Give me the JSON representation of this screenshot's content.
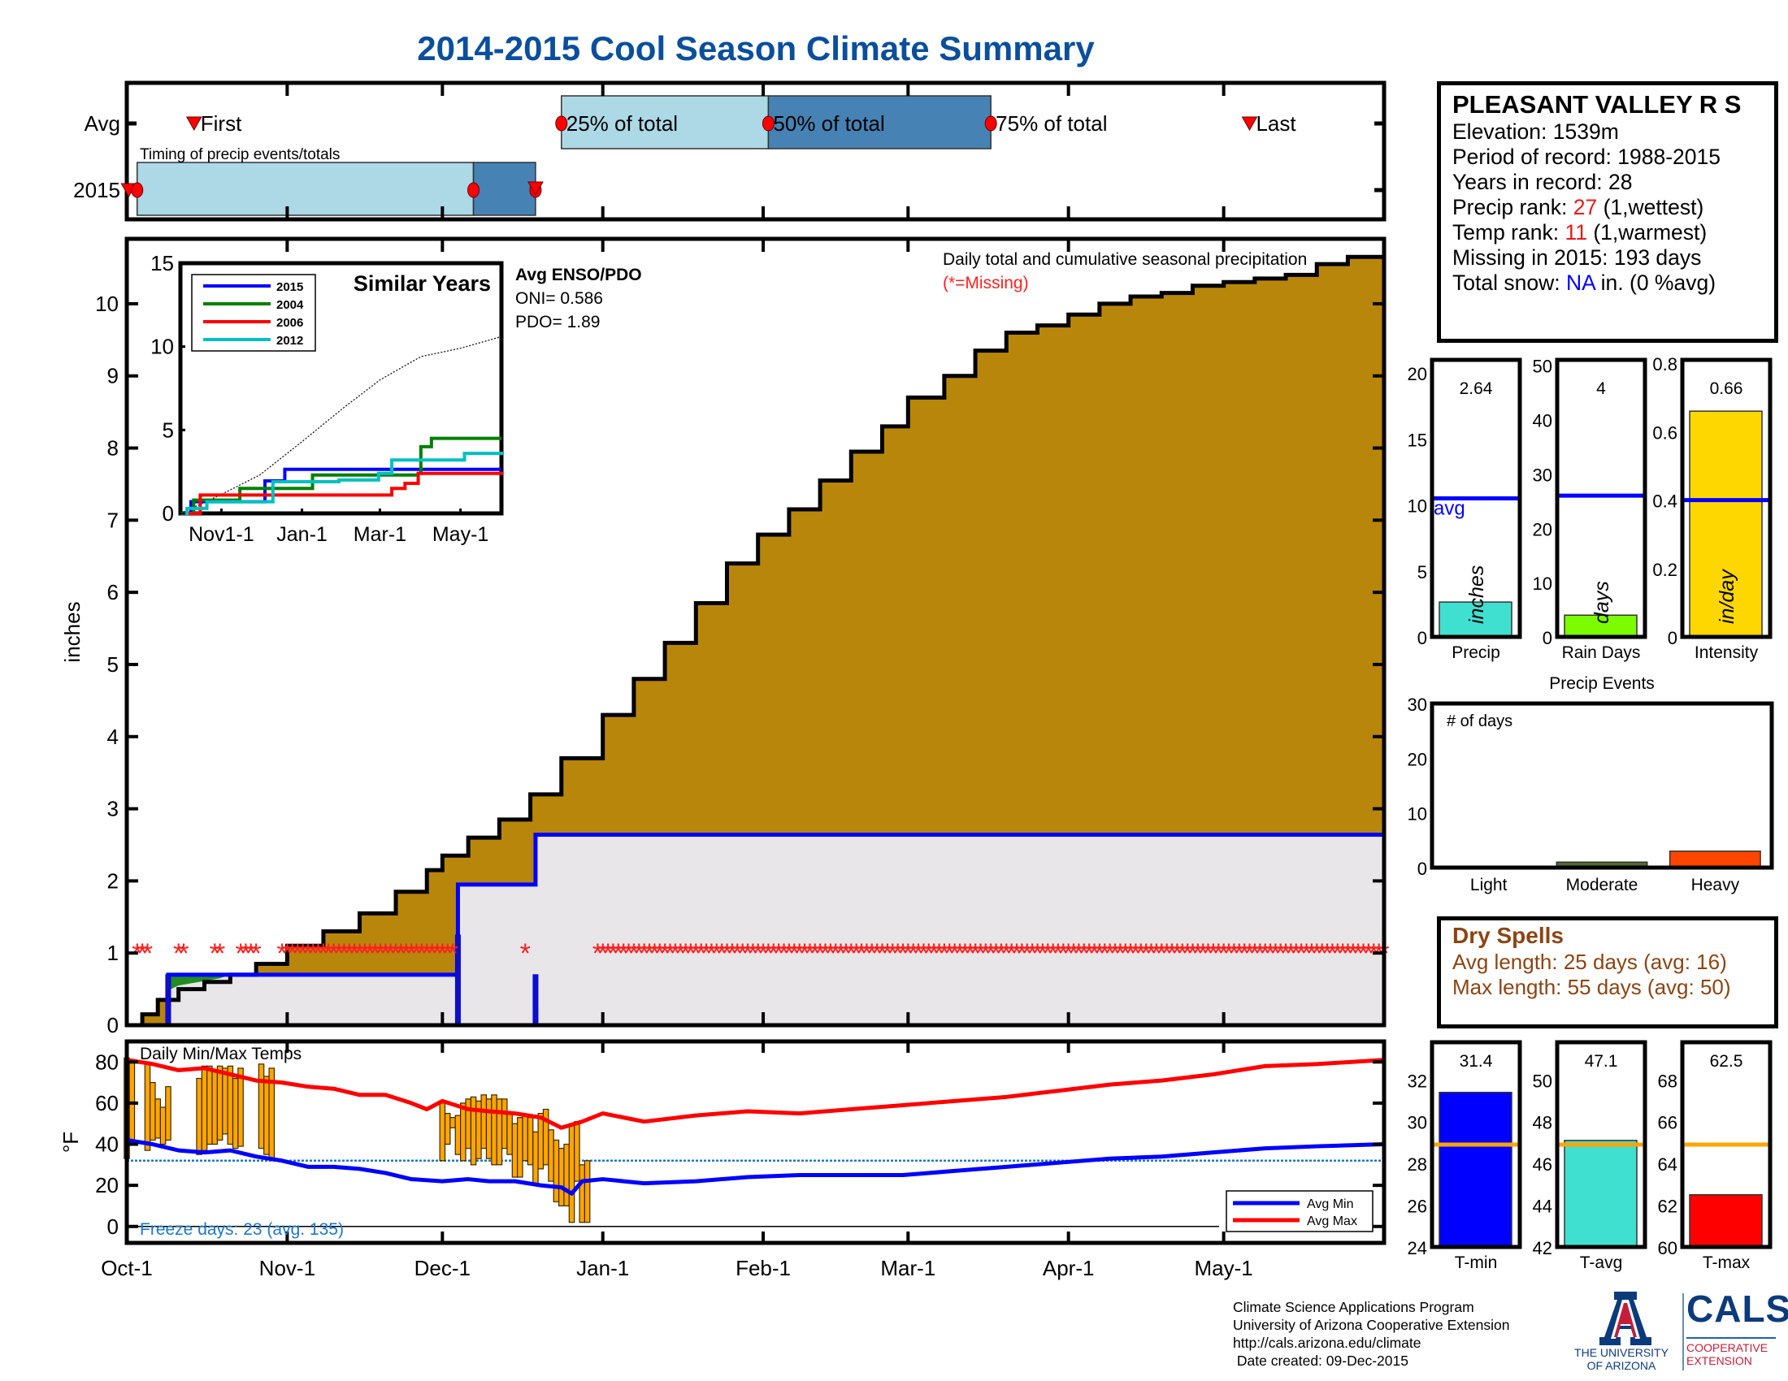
{
  "title": "2014-2015 Cool Season Climate Summary",
  "timing_panel": {
    "caption": "Timing of precip events/totals",
    "row_labels": [
      "Avg",
      "2015"
    ],
    "avg": {
      "first_label": "First",
      "last_label": "Last",
      "p25_label": "25% of total",
      "p50_label": "50% of total",
      "p75_label": "75% of total",
      "first_day": 13,
      "p25_day": 84,
      "p50_day": 124,
      "p75_day": 167,
      "last_day": 217
    },
    "y2015": {
      "first_day": 1,
      "p25_day": 2,
      "p50_day": 67,
      "p75_day": 79
    },
    "colors": {
      "light": "#add8e6",
      "dark": "#4682b4",
      "marker": "#ff0000"
    }
  },
  "station": {
    "name": "PLEASANT VALLEY R S",
    "elevation": "Elevation: 1539m",
    "period": "Period of record: 1988-2015",
    "years": "Years in record: 28",
    "precip_rank_prefix": "Precip rank: ",
    "precip_rank": "27",
    "precip_rank_suffix": " (1,wettest)",
    "temp_rank_prefix": "Temp rank: ",
    "temp_rank": "11",
    "temp_rank_suffix": " (1,warmest)",
    "missing": "Missing in 2015: 193 days",
    "snow_prefix": "Total snow: ",
    "snow_value": "NA",
    "snow_suffix": " in. (0 %avg)"
  },
  "dry_spells": {
    "heading": "Dry Spells",
    "avg_length": "Avg length: 25 days (avg: 16)",
    "max_length": "Max length: 55 days (avg: 50)"
  },
  "credits": {
    "line1": "Climate Science Applications Program",
    "line2": "University of Arizona Cooperative Extension",
    "line3": "http://cals.arizona.edu/climate",
    "line4": " Date created: 09-Dec-2015"
  },
  "logos": {
    "ua_line1": "THE UNIVERSITY",
    "ua_line2": "OF ARIZONA",
    "cals": "CALS",
    "coop_line1": "COOPERATIVE",
    "coop_line2": "EXTENSION"
  },
  "chart_data": [
    {
      "id": "cumulative_precip",
      "type": "area",
      "title": "Daily total and cumulative seasonal precipitation",
      "subtitle": "(*=Missing)",
      "ylabel": "inches",
      "ylim": [
        0,
        10.5
      ],
      "yticks": [
        0,
        1,
        2,
        3,
        4,
        5,
        6,
        7,
        8,
        9,
        10
      ],
      "xlim_days": [
        0,
        243
      ],
      "xtick_labels": [
        "Oct-1",
        "Nov-1",
        "Dec-1",
        "Jan-1",
        "Feb-1",
        "Mar-1",
        "Apr-1",
        "May-1"
      ],
      "xtick_days": [
        0,
        31,
        61,
        92,
        123,
        151,
        182,
        212
      ],
      "avg_cumulative": {
        "name": "Average cumulative",
        "color": "#b8860b",
        "days": [
          0,
          3,
          6,
          10,
          15,
          20,
          25,
          31,
          38,
          45,
          52,
          58,
          61,
          66,
          72,
          78,
          84,
          92,
          98,
          104,
          110,
          116,
          122,
          128,
          134,
          140,
          146,
          151,
          158,
          164,
          170,
          176,
          182,
          188,
          194,
          200,
          206,
          212,
          218,
          224,
          230,
          236,
          243
        ],
        "values": [
          0,
          0.15,
          0.35,
          0.5,
          0.6,
          0.7,
          0.85,
          1.1,
          1.3,
          1.55,
          1.85,
          2.15,
          2.35,
          2.6,
          2.85,
          3.2,
          3.7,
          4.3,
          4.8,
          5.3,
          5.85,
          6.4,
          6.8,
          7.15,
          7.55,
          7.95,
          8.3,
          8.7,
          9.0,
          9.35,
          9.6,
          9.7,
          9.85,
          10.0,
          10.1,
          10.15,
          10.25,
          10.3,
          10.35,
          10.4,
          10.55,
          10.65,
          10.72
        ]
      },
      "series_2015": {
        "name": "2015 cumulative",
        "color": "#0000ff",
        "fill": "#e8e6e8",
        "steps": [
          [
            0,
            0
          ],
          [
            8,
            0.7
          ],
          [
            64,
            1.95
          ],
          [
            79,
            2.64
          ],
          [
            243,
            2.64
          ]
        ]
      },
      "daily_2015": [
        {
          "day": 8,
          "value": 0.7
        },
        {
          "day": 64,
          "value": 1.25
        },
        {
          "day": 79,
          "value": 0.7
        }
      ],
      "missing_marker_value": 1,
      "missing_days_ranges": [
        [
          2,
          4
        ],
        [
          10,
          11
        ],
        [
          17,
          18
        ],
        [
          22,
          25
        ],
        [
          30,
          63
        ],
        [
          77,
          77
        ],
        [
          91,
          243
        ]
      ]
    },
    {
      "id": "similar_years",
      "type": "line",
      "title": "Similar Years",
      "ylim": [
        0,
        15
      ],
      "yticks": [
        0,
        5,
        10,
        15
      ],
      "xtick_labels": [
        "Nov1-1",
        "Jan-1",
        "Mar-1",
        "May-1"
      ],
      "xlim_days": [
        0,
        243
      ],
      "xtick_days": [
        31,
        92,
        151,
        212
      ],
      "legend_position": "top-left",
      "series": [
        {
          "name": "2015",
          "color": "#0000ff",
          "steps": [
            [
              0,
              0
            ],
            [
              8,
              0.7
            ],
            [
              64,
              1.95
            ],
            [
              79,
              2.64
            ],
            [
              243,
              2.64
            ]
          ]
        },
        {
          "name": "2004",
          "color": "#008000",
          "steps": [
            [
              0,
              0
            ],
            [
              10,
              0.8
            ],
            [
              45,
              1.5
            ],
            [
              95,
              1.5
            ],
            [
              100,
              2.3
            ],
            [
              180,
              2.4
            ],
            [
              182,
              4.0
            ],
            [
              190,
              4.5
            ],
            [
              243,
              4.5
            ]
          ]
        },
        {
          "name": "2006",
          "color": "#ff0000",
          "steps": [
            [
              0,
              0
            ],
            [
              15,
              1.1
            ],
            [
              150,
              1.1
            ],
            [
              160,
              1.5
            ],
            [
              170,
              1.8
            ],
            [
              180,
              2.4
            ],
            [
              243,
              2.5
            ]
          ]
        },
        {
          "name": "2012",
          "color": "#00c0c0",
          "steps": [
            [
              0,
              0
            ],
            [
              5,
              0.3
            ],
            [
              20,
              0.7
            ],
            [
              60,
              0.7
            ],
            [
              70,
              1.9
            ],
            [
              120,
              2.0
            ],
            [
              150,
              2.4
            ],
            [
              160,
              3.2
            ],
            [
              210,
              3.2
            ],
            [
              215,
              3.6
            ],
            [
              243,
              3.7
            ]
          ]
        }
      ],
      "avg_line": {
        "name": "Average",
        "color": "#000000",
        "days": [
          0,
          30,
          60,
          92,
          123,
          151,
          182,
          212,
          243
        ],
        "values": [
          0,
          1.1,
          2.3,
          4.3,
          6.3,
          8.0,
          9.4,
          9.9,
          10.6
        ]
      },
      "annotation": {
        "heading": "Avg ENSO/PDO",
        "oni": "ONI= 0.586",
        "pdo": "PDO= 1.89"
      }
    },
    {
      "id": "daily_temps",
      "type": "line",
      "title": "Daily Min/Max Temps",
      "ylabel": "°F",
      "ylim": [
        -8,
        90
      ],
      "yticks": [
        0,
        20,
        40,
        60,
        80
      ],
      "xlim_days": [
        0,
        243
      ],
      "xtick_labels": [
        "Oct-1",
        "Nov-1",
        "Dec-1",
        "Jan-1",
        "Feb-1",
        "Mar-1",
        "Apr-1",
        "May-1"
      ],
      "xtick_days": [
        0,
        31,
        61,
        92,
        123,
        151,
        182,
        212
      ],
      "freeze_line": 32,
      "freeze_label": "Freeze days: 23 (avg. 135)",
      "legend": [
        "Avg Min",
        "Avg Max"
      ],
      "legend_position": "bottom-right",
      "avg_max": {
        "color": "#ff0000",
        "days": [
          0,
          5,
          10,
          15,
          20,
          25,
          30,
          35,
          40,
          45,
          50,
          55,
          58,
          61,
          66,
          70,
          75,
          80,
          84,
          88,
          92,
          96,
          100,
          110,
          120,
          130,
          140,
          150,
          160,
          170,
          180,
          190,
          200,
          210,
          220,
          230,
          243
        ],
        "values": [
          81,
          79,
          76,
          77,
          74,
          71,
          70,
          68,
          67,
          64,
          64,
          60,
          57,
          61,
          57,
          56,
          55,
          53,
          48,
          51,
          55,
          53,
          51,
          54,
          56,
          55,
          57,
          59,
          61,
          63,
          66,
          69,
          71,
          74,
          78,
          79,
          81
        ]
      },
      "avg_min": {
        "color": "#0000ff",
        "days": [
          0,
          5,
          10,
          15,
          20,
          25,
          30,
          35,
          40,
          45,
          50,
          55,
          61,
          66,
          70,
          75,
          80,
          84,
          86,
          88,
          92,
          96,
          100,
          110,
          120,
          130,
          140,
          150,
          160,
          170,
          180,
          190,
          200,
          210,
          220,
          230,
          243
        ],
        "values": [
          42,
          40,
          37,
          36,
          37,
          34,
          32,
          29,
          29,
          28,
          26,
          23,
          22,
          23,
          22,
          22,
          20,
          19,
          16,
          22,
          23,
          22,
          21,
          22,
          24,
          25,
          25,
          25,
          27,
          29,
          31,
          33,
          34,
          36,
          38,
          39,
          40
        ]
      },
      "daily_bars": [
        [
          0,
          33,
          82
        ],
        [
          1,
          40,
          81
        ],
        [
          4,
          37,
          80
        ],
        [
          5,
          42,
          70
        ],
        [
          6,
          43,
          62
        ],
        [
          7,
          40,
          58
        ],
        [
          8,
          42,
          68
        ],
        [
          14,
          35,
          72
        ],
        [
          15,
          37,
          78
        ],
        [
          16,
          40,
          78
        ],
        [
          17,
          40,
          76
        ],
        [
          18,
          42,
          78
        ],
        [
          19,
          45,
          77
        ],
        [
          20,
          40,
          78
        ],
        [
          21,
          38,
          72
        ],
        [
          22,
          39,
          77
        ],
        [
          26,
          38,
          79
        ],
        [
          27,
          35,
          73
        ],
        [
          28,
          33,
          77
        ],
        [
          61,
          32,
          60
        ],
        [
          62,
          40,
          55
        ],
        [
          63,
          48,
          53
        ],
        [
          64,
          35,
          54
        ],
        [
          65,
          32,
          60
        ],
        [
          66,
          38,
          62
        ],
        [
          67,
          30,
          63
        ],
        [
          68,
          33,
          61
        ],
        [
          69,
          38,
          64
        ],
        [
          70,
          33,
          62
        ],
        [
          71,
          30,
          64
        ],
        [
          72,
          30,
          62
        ],
        [
          73,
          38,
          62
        ],
        [
          74,
          35,
          55
        ],
        [
          75,
          24,
          50
        ],
        [
          76,
          24,
          53
        ],
        [
          77,
          32,
          54
        ],
        [
          78,
          30,
          53
        ],
        [
          79,
          20,
          46
        ],
        [
          80,
          28,
          55
        ],
        [
          81,
          30,
          57
        ],
        [
          82,
          22,
          47
        ],
        [
          83,
          12,
          42
        ],
        [
          84,
          10,
          38
        ],
        [
          85,
          10,
          40
        ],
        [
          86,
          2,
          50
        ],
        [
          87,
          22,
          51
        ],
        [
          88,
          2,
          30
        ],
        [
          89,
          2,
          32
        ]
      ]
    },
    {
      "id": "precip_summary_bars",
      "type": "bar",
      "panels": [
        {
          "label": "Precip",
          "unit_label": "inches",
          "value": 2.64,
          "value_text": "2.64",
          "avg": 10.5,
          "avg_label": "avg",
          "ylim": [
            0,
            21
          ],
          "yticks": [
            0,
            5,
            10,
            15,
            20
          ],
          "color": "#40e0d0"
        },
        {
          "label": "Rain Days",
          "unit_label": "days",
          "value": 4,
          "value_text": "4",
          "avg": 26,
          "ylim": [
            0,
            51
          ],
          "yticks": [
            0,
            10,
            20,
            30,
            40,
            50
          ],
          "color": "#7cfc00"
        },
        {
          "label": "Intensity",
          "unit_label": "in/day",
          "value": 0.66,
          "value_text": "0.66",
          "avg": 0.4,
          "ylim": [
            0,
            0.81
          ],
          "yticks": [
            0,
            0.2,
            0.4,
            0.6,
            0.8
          ],
          "color": "#ffd700"
        }
      ],
      "avg_line_color": "#0000ff"
    },
    {
      "id": "precip_events",
      "type": "bar",
      "title": "Precip Events",
      "annotation": "# of days",
      "categories": [
        "Light",
        "Moderate",
        "Heavy"
      ],
      "values": [
        0,
        1,
        3
      ],
      "colors": [
        "#8b4513",
        "#556b2f",
        "#ff4500"
      ],
      "ylim": [
        0,
        30
      ],
      "yticks": [
        0,
        10,
        20,
        30
      ]
    },
    {
      "id": "temp_summary_bars",
      "type": "bar",
      "panels": [
        {
          "label": "T-min",
          "value": 31.4,
          "value_text": "31.4",
          "avg": 28.9,
          "ylim": [
            24,
            33.8
          ],
          "yticks": [
            24,
            26,
            28,
            30,
            32
          ],
          "color": "#0000ff"
        },
        {
          "label": "T-avg",
          "value": 47.1,
          "value_text": "47.1",
          "avg": 46.9,
          "ylim": [
            42,
            51.8
          ],
          "yticks": [
            42,
            44,
            46,
            48,
            50
          ],
          "color": "#40e0d0"
        },
        {
          "label": "T-max",
          "value": 62.5,
          "value_text": "62.5",
          "avg": 64.9,
          "ylim": [
            60,
            69.8
          ],
          "yticks": [
            60,
            62,
            64,
            66,
            68
          ],
          "color": "#ff0000"
        }
      ],
      "avg_line_color": "#ffa500"
    }
  ]
}
